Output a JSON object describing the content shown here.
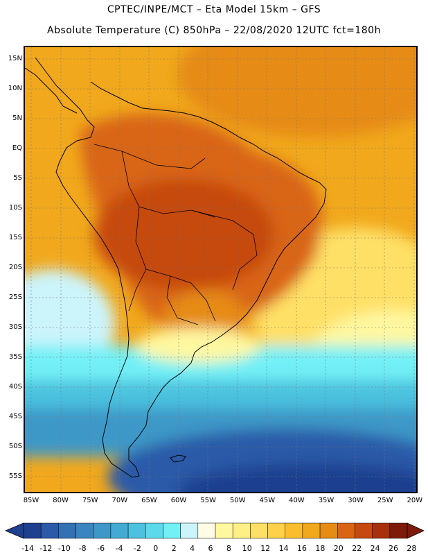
{
  "header": {
    "line1": "CPTEC/INPE/MCT –  Eta Model 15km – GFS",
    "line2": "Absolute Temperature (C) 850hPa – 22/08/2020 12UTC fct=180h"
  },
  "lat_labels": [
    "15N",
    "10N",
    "5N",
    "EQ",
    "5S",
    "10S",
    "15S",
    "20S",
    "25S",
    "30S",
    "35S",
    "40S",
    "45S",
    "50S",
    "55S"
  ],
  "lon_labels": [
    "85W",
    "80W",
    "75W",
    "70W",
    "65W",
    "60W",
    "55W",
    "50W",
    "45W",
    "40W",
    "35W",
    "30W",
    "25W",
    "20W"
  ],
  "colorbar": {
    "labels": [
      "-14",
      "-12",
      "-10",
      "-8",
      "-6",
      "-4",
      "-2",
      "0",
      "2",
      "4",
      "6",
      "8",
      "10",
      "12",
      "14",
      "16",
      "18",
      "20",
      "22",
      "24",
      "26",
      "28"
    ],
    "colors": [
      "#1f3f8f",
      "#2a5aa8",
      "#3370b4",
      "#3a85bf",
      "#3d98c8",
      "#43abd3",
      "#4cc2df",
      "#5cd9ea",
      "#72f0f6",
      "#ccf4fb",
      "#fffbe6",
      "#fff8a0",
      "#ffef86",
      "#ffe066",
      "#ffd04a",
      "#f9bd2e",
      "#f1a81c",
      "#e68b14",
      "#d96512",
      "#c64a10",
      "#a8300c",
      "#7e1a0a"
    ],
    "under_color": "#1f3f8f",
    "over_color": "#7e1a0a"
  }
}
